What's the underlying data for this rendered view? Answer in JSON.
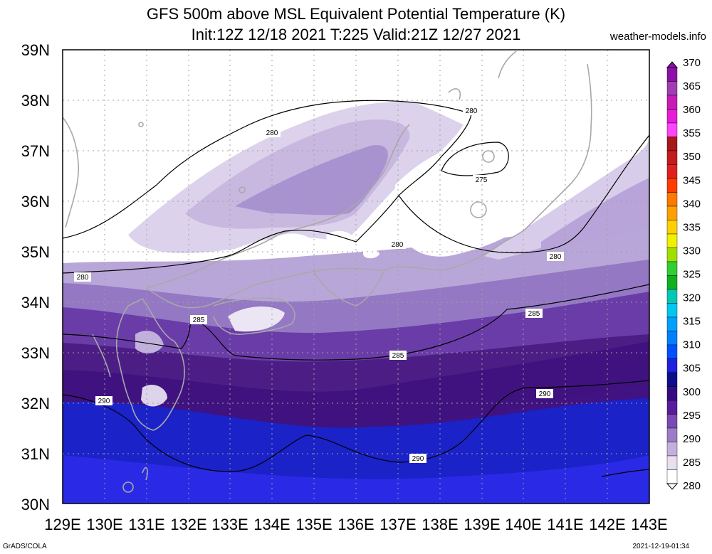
{
  "title_line1": "GFS 500m above MSL Equivalent Potential Temperature (K)",
  "title_line2": "Init:12Z 12/18 2021 T:225 Valid:21Z 12/27 2021",
  "credit": "weather-models.info",
  "footer_left": "GrADS/COLA",
  "footer_right": "2021-12-19-01:34",
  "lon_labels": [
    "129E",
    "130E",
    "131E",
    "132E",
    "133E",
    "134E",
    "135E",
    "136E",
    "137E",
    "138E",
    "139E",
    "140E",
    "141E",
    "142E",
    "143E"
  ],
  "lat_labels": [
    "39N",
    "38N",
    "37N",
    "36N",
    "35N",
    "34N",
    "33N",
    "32N",
    "31N",
    "30N"
  ],
  "colorbar": {
    "labels": [
      "370",
      "365",
      "360",
      "355",
      "350",
      "345",
      "340",
      "335",
      "330",
      "325",
      "320",
      "315",
      "310",
      "305",
      "300",
      "295",
      "290",
      "285",
      "280"
    ],
    "colors": [
      "#8e0ea8",
      "#a23cb4",
      "#c71bb4",
      "#e81cd8",
      "#ff44ff",
      "#a81818",
      "#c41c1c",
      "#e02020",
      "#ff3c00",
      "#ff7800",
      "#ffa000",
      "#ffd000",
      "#f0f000",
      "#a0e000",
      "#30d030",
      "#10b020",
      "#00c8b4",
      "#00c8f0",
      "#00a0ff",
      "#0080ff",
      "#0050ff",
      "#2020e0",
      "#0e0e8c",
      "#380a80",
      "#5a1c9c",
      "#7a4ab4",
      "#9c7cc8",
      "#c4b0dc",
      "#e8e0f0",
      "#ffffff"
    ]
  },
  "contour_labels": [
    "280",
    "280",
    "280",
    "280",
    "280",
    "275",
    "285",
    "285",
    "285",
    "290",
    "290",
    "290"
  ],
  "chart_data": {
    "type": "heatmap",
    "title": "GFS 500m above MSL Equivalent Potential Temperature (K)",
    "subtitle": "Init:12Z 12/18 2021 T:225 Valid:21Z 12/27 2021",
    "xlim": [
      129,
      143
    ],
    "ylim": [
      30,
      39
    ],
    "x_ticks": [
      "129E",
      "130E",
      "131E",
      "132E",
      "133E",
      "134E",
      "135E",
      "136E",
      "137E",
      "138E",
      "139E",
      "140E",
      "141E",
      "142E",
      "143E"
    ],
    "y_ticks": [
      "30N",
      "31N",
      "32N",
      "33N",
      "34N",
      "35N",
      "36N",
      "37N",
      "38N",
      "39N"
    ],
    "colorbar_range": [
      280,
      370
    ],
    "colorbar_step": 5,
    "contour_levels": [
      275,
      280,
      285,
      290
    ],
    "grid": true
  }
}
